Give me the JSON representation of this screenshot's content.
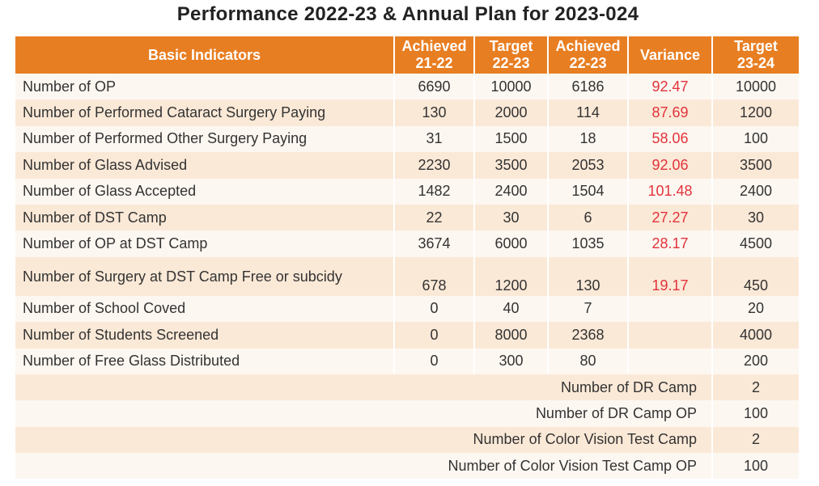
{
  "title": "Performance 2022-23 & Annual Plan for 2023-024",
  "headers": {
    "indicator": "Basic Indicators",
    "achieved_21_22": [
      "Achieved",
      "21-22"
    ],
    "target_22_23": [
      "Target",
      "22-23"
    ],
    "achieved_22_23": [
      "Achieved",
      "22-23"
    ],
    "variance": "Variance",
    "target_23_24": [
      "Target",
      "23-24"
    ]
  },
  "rows": [
    {
      "indicator": "Number of OP",
      "achieved_21_22": "6690",
      "target_22_23": "10000",
      "achieved_22_23": "6186",
      "variance": "92.47",
      "target_23_24": "10000"
    },
    {
      "indicator": "Number of Performed Cataract Surgery Paying",
      "achieved_21_22": "130",
      "target_22_23": "2000",
      "achieved_22_23": "114",
      "variance": "87.69",
      "target_23_24": "1200"
    },
    {
      "indicator": "Number of Performed Other Surgery Paying",
      "achieved_21_22": "31",
      "target_22_23": "1500",
      "achieved_22_23": "18",
      "variance": "58.06",
      "target_23_24": "100"
    },
    {
      "indicator": "Number of Glass Advised",
      "achieved_21_22": "2230",
      "target_22_23": "3500",
      "achieved_22_23": "2053",
      "variance": "92.06",
      "target_23_24": "3500"
    },
    {
      "indicator": "Number of Glass Accepted",
      "achieved_21_22": "1482",
      "target_22_23": "2400",
      "achieved_22_23": "1504",
      "variance": "101.48",
      "target_23_24": "2400"
    },
    {
      "indicator": "Number of DST Camp",
      "achieved_21_22": "22",
      "target_22_23": "30",
      "achieved_22_23": "6",
      "variance": "27.27",
      "target_23_24": "30"
    },
    {
      "indicator": "Number of OP at DST Camp",
      "achieved_21_22": "3674",
      "target_22_23": "6000",
      "achieved_22_23": "1035",
      "variance": "28.17",
      "target_23_24": "4500"
    },
    {
      "indicator": "Number of Surgery at DST Camp Free or subcidy",
      "achieved_21_22": "678",
      "target_22_23": "1200",
      "achieved_22_23": "130",
      "variance": "19.17",
      "target_23_24": "450"
    },
    {
      "indicator": "Number of School Coved",
      "achieved_21_22": "0",
      "target_22_23": "40",
      "achieved_22_23": "7",
      "variance": "",
      "target_23_24": "20"
    },
    {
      "indicator": "Number of Students Screened",
      "achieved_21_22": "0",
      "target_22_23": "8000",
      "achieved_22_23": "2368",
      "variance": "",
      "target_23_24": "4000"
    },
    {
      "indicator": "Number of Free Glass Distributed",
      "achieved_21_22": "0",
      "target_22_23": "300",
      "achieved_22_23": "80",
      "variance": "",
      "target_23_24": "200"
    }
  ],
  "extra_rows": [
    {
      "indicator": "Number of DR Camp",
      "target_23_24": "2"
    },
    {
      "indicator": "Number of DR Camp OP",
      "target_23_24": "100"
    },
    {
      "indicator": "Number of Color Vision Test Camp",
      "target_23_24": "2"
    },
    {
      "indicator": "Number of Color Vision Test Camp OP",
      "target_23_24": "100"
    }
  ],
  "colors": {
    "header_bg": "#e87e22",
    "row_light": "#fdf7f1",
    "row_dark": "#fbe9d7",
    "variance_text": "#e2333b"
  }
}
